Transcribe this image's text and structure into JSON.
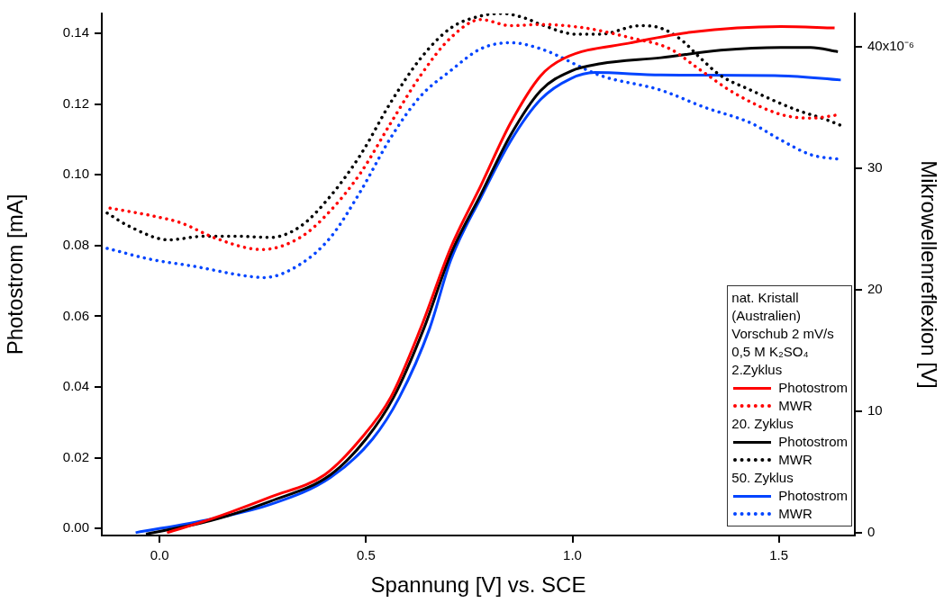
{
  "chart_data": {
    "type": "line",
    "xlabel": "Spannung [V] vs. SCE",
    "ylabel": "Photostrom [mA]",
    "y2label": "Mikrowellenreflexion [V]",
    "legend": "bottom right",
    "legend_title": "nat. Kristall\n(Australien)\nVorschub 2 mV/s\n0,5 M K₂SO₄",
    "annotations": [
      "2.Zyklus",
      "20. Zyklus",
      "50. Zyklus",
      "x10⁻⁶"
    ],
    "xlim": [
      -0.14,
      1.684
    ],
    "xticks": [
      {
        "value": 0,
        "label": "0.0"
      },
      {
        "value": 0.5,
        "label": "0.5"
      },
      {
        "value": 1,
        "label": "1.0"
      },
      {
        "value": 1.5,
        "label": "1.5"
      }
    ],
    "ylim": [
      -0.002,
      0.1456
    ],
    "yticks": [
      {
        "value": 0,
        "label": "0.00"
      },
      {
        "value": 0.02,
        "label": "0.02"
      },
      {
        "value": 0.04,
        "label": "0.04"
      },
      {
        "value": 0.06,
        "label": "0.06"
      },
      {
        "value": 0.08,
        "label": "0.08"
      },
      {
        "value": 0.1,
        "label": "0.10"
      },
      {
        "value": 0.12,
        "label": "0.12"
      },
      {
        "value": 0.14,
        "label": "0.14"
      }
    ],
    "y2lim": [
      -0.2,
      42.7
    ],
    "y2ticks": [
      0,
      10,
      20,
      30,
      40
    ],
    "marker": "none",
    "series": [
      {
        "name": "Photostrom",
        "color": "#ff0000",
        "line_style": "solid",
        "x": [
          0.018,
          0.123,
          0.269,
          0.4,
          0.487,
          0.56,
          0.632,
          0.705,
          0.778,
          0.85,
          0.923,
          0.981,
          1.141,
          1.287,
          1.505,
          1.635
        ],
        "values": [
          -0.0012,
          0.0026,
          0.0089,
          0.0152,
          0.0253,
          0.0371,
          0.0565,
          0.0793,
          0.0969,
          0.1146,
          0.128,
          0.133,
          0.1373,
          0.1403,
          0.1419,
          0.1415
        ]
      },
      {
        "name": "MWR",
        "color": "#ff0000",
        "line_style": "dotted",
        "axis": "y2",
        "x": [
          -0.12,
          -0.022,
          0.051,
          0.138,
          0.247,
          0.341,
          0.414,
          0.487,
          0.56,
          0.632,
          0.705,
          0.778,
          0.85,
          0.923,
          1.032,
          1.141,
          1.236,
          1.308,
          1.395,
          1.505,
          1.577,
          1.65
        ],
        "values": [
          26.7,
          26.1,
          25.5,
          24.2,
          23.3,
          24.3,
          26.5,
          29.6,
          33.7,
          37.6,
          40.7,
          42.2,
          41.7,
          41.8,
          41.5,
          40.7,
          39.8,
          38.1,
          36.1,
          34.4,
          34.1,
          34.4
        ]
      },
      {
        "name": "Photostrom",
        "color": "#000000",
        "line_style": "solid",
        "x": [
          -0.033,
          0.123,
          0.269,
          0.414,
          0.5,
          0.567,
          0.64,
          0.705,
          0.778,
          0.85,
          0.923,
          0.996,
          1.068,
          1.214,
          1.359,
          1.505,
          1.577,
          1.643
        ],
        "values": [
          -0.0016,
          0.0022,
          0.0077,
          0.0152,
          0.0253,
          0.0371,
          0.0565,
          0.0775,
          0.0944,
          0.1112,
          0.1238,
          0.1293,
          0.1314,
          0.1331,
          0.1352,
          0.136,
          0.136,
          0.1348
        ]
      },
      {
        "name": "MWR",
        "color": "#000000",
        "line_style": "dotted",
        "axis": "y2",
        "x": [
          -0.127,
          -0.073,
          0.022,
          0.109,
          0.182,
          0.269,
          0.341,
          0.414,
          0.487,
          0.56,
          0.632,
          0.705,
          0.778,
          0.829,
          0.887,
          0.923,
          1.01,
          1.068,
          1.163,
          1.214,
          1.265,
          1.308,
          1.359,
          1.432,
          1.541,
          1.613,
          1.65
        ],
        "values": [
          26.3,
          25.2,
          24.1,
          24.4,
          24.4,
          24.3,
          25.2,
          27.7,
          31.1,
          35.4,
          39,
          41.5,
          42.5,
          42.7,
          42.3,
          41.8,
          41,
          41,
          41.7,
          41.5,
          40.5,
          39.1,
          37.6,
          36.4,
          34.8,
          34,
          33.5
        ]
      },
      {
        "name": "Photostrom",
        "color": "#0044ff",
        "line_style": "solid",
        "x": [
          -0.058,
          0.123,
          0.269,
          0.414,
          0.516,
          0.581,
          0.654,
          0.705,
          0.778,
          0.85,
          0.923,
          0.996,
          1.054,
          1.214,
          1.505,
          1.65
        ],
        "values": [
          -0.0012,
          0.0026,
          0.0068,
          0.0144,
          0.0253,
          0.0371,
          0.0565,
          0.0758,
          0.0935,
          0.1095,
          0.1213,
          0.1272,
          0.1289,
          0.1282,
          0.128,
          0.1268
        ]
      },
      {
        "name": "MWR",
        "color": "#0044ff",
        "line_style": "dotted",
        "axis": "y2",
        "x": [
          -0.127,
          -0.022,
          0.087,
          0.196,
          0.254,
          0.341,
          0.414,
          0.487,
          0.56,
          0.632,
          0.705,
          0.778,
          0.85,
          0.923,
          1.068,
          1.214,
          1.319,
          1.432,
          1.505,
          1.577,
          1.65
        ],
        "values": [
          23.4,
          22.5,
          21.9,
          21.2,
          21,
          22.1,
          24.3,
          28.1,
          32.5,
          35.9,
          38,
          39.8,
          40.3,
          39.8,
          37.6,
          36.4,
          35,
          33.7,
          32.3,
          31.1,
          30.7
        ]
      }
    ]
  }
}
